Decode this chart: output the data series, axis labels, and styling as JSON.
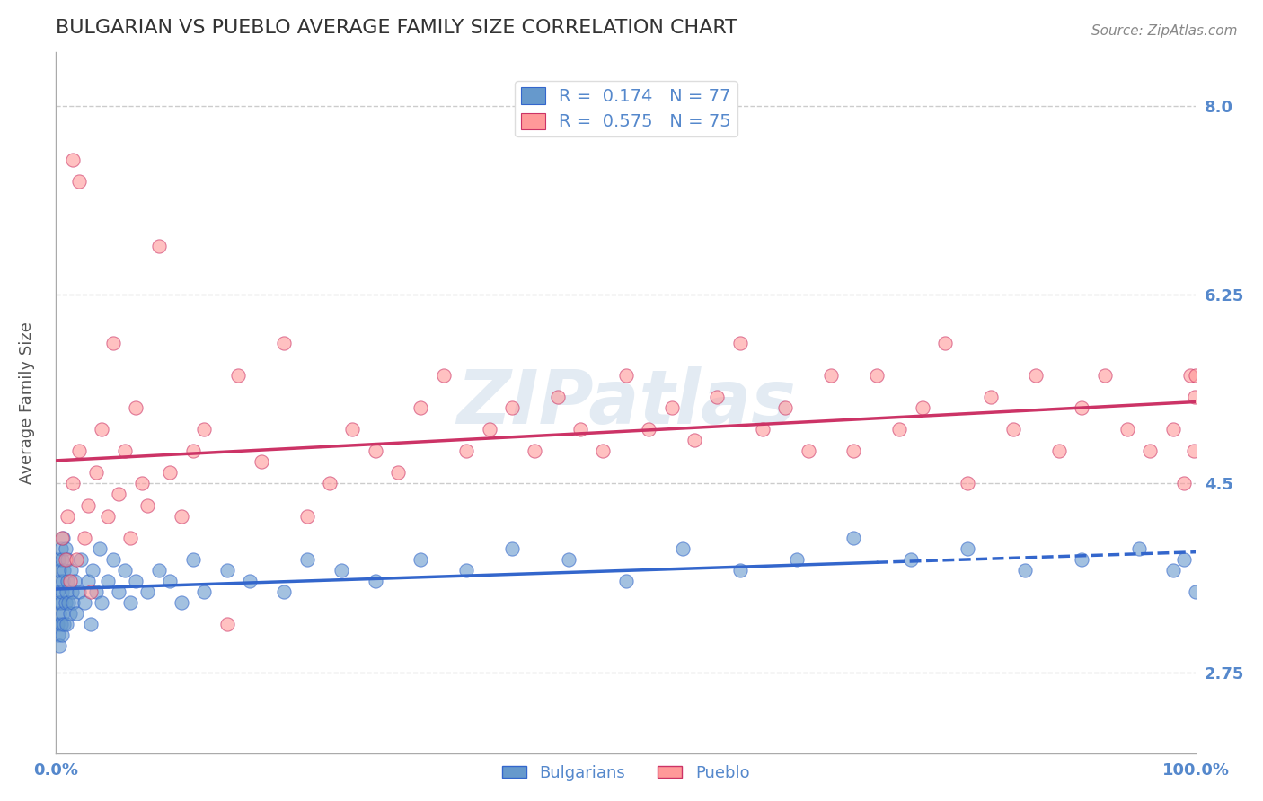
{
  "title": "BULGARIAN VS PUEBLO AVERAGE FAMILY SIZE CORRELATION CHART",
  "source_text": "Source: ZipAtlas.com",
  "xlabel": "",
  "ylabel": "Average Family Size",
  "xlim": [
    0.0,
    1.0
  ],
  "ylim": [
    2.0,
    8.5
  ],
  "yticks": [
    2.75,
    4.5,
    6.25,
    8.0
  ],
  "xticks": [
    0.0,
    0.5,
    1.0
  ],
  "xticklabels": [
    "0.0%",
    "",
    "100.0%"
  ],
  "watermark": "ZIPatlas",
  "legend_r_blue": "0.174",
  "legend_n_blue": "77",
  "legend_r_pink": "0.575",
  "legend_n_pink": "75",
  "legend_label_blue": "Bulgarians",
  "legend_label_pink": "Pueblo",
  "blue_color": "#6699cc",
  "pink_color": "#ff9999",
  "blue_line_color": "#3366cc",
  "pink_line_color": "#cc3366",
  "axis_color": "#5588cc",
  "grid_color": "#cccccc",
  "title_color": "#333333",
  "blue_scatter_x": [
    0.001,
    0.001,
    0.002,
    0.002,
    0.002,
    0.003,
    0.003,
    0.003,
    0.003,
    0.004,
    0.004,
    0.004,
    0.005,
    0.005,
    0.005,
    0.006,
    0.006,
    0.006,
    0.007,
    0.007,
    0.008,
    0.008,
    0.009,
    0.009,
    0.01,
    0.01,
    0.011,
    0.012,
    0.013,
    0.014,
    0.015,
    0.016,
    0.018,
    0.02,
    0.022,
    0.025,
    0.028,
    0.03,
    0.032,
    0.035,
    0.038,
    0.04,
    0.045,
    0.05,
    0.055,
    0.06,
    0.065,
    0.07,
    0.08,
    0.09,
    0.1,
    0.11,
    0.12,
    0.13,
    0.15,
    0.17,
    0.2,
    0.22,
    0.25,
    0.28,
    0.32,
    0.36,
    0.4,
    0.45,
    0.5,
    0.55,
    0.6,
    0.65,
    0.7,
    0.75,
    0.8,
    0.85,
    0.9,
    0.95,
    0.98,
    0.99,
    1.0
  ],
  "blue_scatter_y": [
    3.5,
    3.2,
    3.8,
    3.1,
    3.4,
    3.6,
    3.3,
    3.0,
    3.7,
    3.2,
    3.9,
    3.4,
    3.5,
    3.1,
    3.8,
    3.6,
    3.3,
    4.0,
    3.2,
    3.7,
    3.4,
    3.9,
    3.5,
    3.2,
    3.8,
    3.6,
    3.4,
    3.3,
    3.7,
    3.5,
    3.4,
    3.6,
    3.3,
    3.5,
    3.8,
    3.4,
    3.6,
    3.2,
    3.7,
    3.5,
    3.9,
    3.4,
    3.6,
    3.8,
    3.5,
    3.7,
    3.4,
    3.6,
    3.5,
    3.7,
    3.6,
    3.4,
    3.8,
    3.5,
    3.7,
    3.6,
    3.5,
    3.8,
    3.7,
    3.6,
    3.8,
    3.7,
    3.9,
    3.8,
    3.6,
    3.9,
    3.7,
    3.8,
    4.0,
    3.8,
    3.9,
    3.7,
    3.8,
    3.9,
    3.7,
    3.8,
    3.5
  ],
  "pink_scatter_x": [
    0.005,
    0.008,
    0.01,
    0.012,
    0.015,
    0.018,
    0.02,
    0.025,
    0.028,
    0.03,
    0.035,
    0.04,
    0.045,
    0.05,
    0.055,
    0.06,
    0.065,
    0.07,
    0.075,
    0.08,
    0.09,
    0.1,
    0.11,
    0.12,
    0.13,
    0.15,
    0.16,
    0.18,
    0.2,
    0.22,
    0.24,
    0.26,
    0.28,
    0.3,
    0.32,
    0.34,
    0.36,
    0.38,
    0.4,
    0.42,
    0.44,
    0.46,
    0.48,
    0.5,
    0.52,
    0.54,
    0.56,
    0.58,
    0.6,
    0.62,
    0.64,
    0.66,
    0.68,
    0.7,
    0.72,
    0.74,
    0.76,
    0.78,
    0.8,
    0.82,
    0.84,
    0.86,
    0.88,
    0.9,
    0.92,
    0.94,
    0.96,
    0.98,
    0.99,
    0.995,
    0.998,
    0.999,
    1.0,
    0.015,
    0.02
  ],
  "pink_scatter_y": [
    4.0,
    3.8,
    4.2,
    3.6,
    4.5,
    3.8,
    4.8,
    4.0,
    4.3,
    3.5,
    4.6,
    5.0,
    4.2,
    5.8,
    4.4,
    4.8,
    4.0,
    5.2,
    4.5,
    4.3,
    6.7,
    4.6,
    4.2,
    4.8,
    5.0,
    3.2,
    5.5,
    4.7,
    5.8,
    4.2,
    4.5,
    5.0,
    4.8,
    4.6,
    5.2,
    5.5,
    4.8,
    5.0,
    5.2,
    4.8,
    5.3,
    5.0,
    4.8,
    5.5,
    5.0,
    5.2,
    4.9,
    5.3,
    5.8,
    5.0,
    5.2,
    4.8,
    5.5,
    4.8,
    5.5,
    5.0,
    5.2,
    5.8,
    4.5,
    5.3,
    5.0,
    5.5,
    4.8,
    5.2,
    5.5,
    5.0,
    4.8,
    5.0,
    4.5,
    5.5,
    4.8,
    5.3,
    5.5,
    7.5,
    7.3
  ]
}
